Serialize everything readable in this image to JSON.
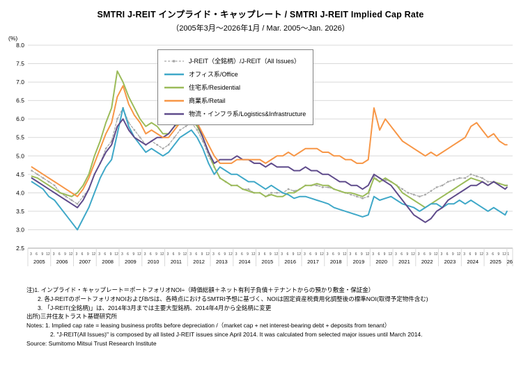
{
  "header": {
    "title": "SMTRI J-REIT インプライド・キャップレート / SMTRI J-REIT Implied Cap Rate",
    "subtitle": "（2005年3月～2026年1月 / Mar. 2005～Jan. 2026）"
  },
  "chart_data": {
    "type": "line",
    "title": "SMTRI J-REIT インプライド・キャップレート / SMTRI J-REIT Implied Cap Rate",
    "subtitle": "（2005年3月～2026年1月 / Mar. 2005～Jan. 2026）",
    "ylabel": "(%)",
    "ylim": [
      2.5,
      8.0
    ],
    "ytick_step": 0.5,
    "grid": true,
    "legend_position": "upper-center-in-plot",
    "x_years": [
      2005,
      2006,
      2007,
      2008,
      2009,
      2010,
      2011,
      2012,
      2013,
      2014,
      2015,
      2016,
      2017,
      2018,
      2019,
      2020,
      2021,
      2022,
      2023,
      2024,
      2025
    ],
    "x_end_label": "26",
    "month_ticks": [
      "3",
      "6",
      "9",
      "12"
    ],
    "x": [
      2005.17,
      2005.42,
      2005.67,
      2005.92,
      2006.17,
      2006.42,
      2006.67,
      2006.92,
      2007.17,
      2007.42,
      2007.67,
      2007.92,
      2008.17,
      2008.42,
      2008.67,
      2008.92,
      2009.17,
      2009.42,
      2009.67,
      2009.92,
      2010.17,
      2010.42,
      2010.67,
      2010.92,
      2011.17,
      2011.42,
      2011.67,
      2011.92,
      2012.17,
      2012.42,
      2012.67,
      2012.92,
      2013.17,
      2013.42,
      2013.67,
      2013.92,
      2014.17,
      2014.42,
      2014.67,
      2014.92,
      2015.17,
      2015.42,
      2015.67,
      2015.92,
      2016.17,
      2016.42,
      2016.67,
      2016.92,
      2017.17,
      2017.42,
      2017.67,
      2017.92,
      2018.17,
      2018.42,
      2018.67,
      2018.92,
      2019.17,
      2019.42,
      2019.67,
      2019.92,
      2020.17,
      2020.42,
      2020.67,
      2020.92,
      2021.17,
      2021.42,
      2021.67,
      2021.92,
      2022.17,
      2022.42,
      2022.67,
      2022.92,
      2023.17,
      2023.42,
      2023.67,
      2023.92,
      2024.17,
      2024.42,
      2024.67,
      2024.92,
      2025.17,
      2025.42,
      2025.67,
      2025.92,
      2026.0
    ],
    "series": [
      {
        "key": "all-issues",
        "label": "J-REIT（全銘柄）/J-REIT（All Issues）",
        "color": "#a6a6a6",
        "dashed": true,
        "markers": true,
        "values": [
          4.6,
          4.5,
          4.4,
          4.3,
          4.2,
          4.0,
          3.9,
          3.8,
          3.7,
          3.9,
          4.1,
          4.5,
          4.8,
          5.2,
          5.4,
          6.0,
          6.3,
          5.9,
          5.7,
          5.5,
          5.3,
          5.4,
          5.3,
          5.2,
          5.3,
          5.5,
          5.7,
          5.8,
          5.9,
          5.7,
          5.4,
          5.0,
          4.7,
          4.4,
          4.3,
          4.2,
          4.2,
          4.1,
          4.1,
          4.0,
          4.0,
          3.9,
          4.0,
          4.0,
          4.0,
          4.1,
          4.05,
          4.1,
          4.2,
          4.2,
          4.2,
          4.15,
          4.15,
          4.1,
          4.05,
          4.0,
          3.95,
          3.9,
          3.85,
          3.9,
          4.45,
          4.3,
          4.35,
          4.3,
          4.2,
          4.1,
          4.0,
          3.95,
          3.9,
          3.95,
          4.05,
          4.15,
          4.2,
          4.3,
          4.35,
          4.4,
          4.4,
          4.5,
          4.45,
          4.4,
          4.3,
          4.3,
          4.25,
          4.2,
          4.2
        ]
      },
      {
        "key": "office",
        "label": "オフィス系/Office",
        "color": "#3fa8c8",
        "dashed": false,
        "markers": false,
        "values": [
          4.3,
          4.2,
          4.1,
          3.9,
          3.8,
          3.6,
          3.4,
          3.2,
          3.0,
          3.3,
          3.6,
          4.0,
          4.4,
          4.7,
          4.9,
          5.6,
          6.3,
          5.8,
          5.5,
          5.3,
          5.1,
          5.2,
          5.1,
          5.0,
          5.1,
          5.3,
          5.5,
          5.6,
          5.7,
          5.5,
          5.2,
          4.8,
          4.5,
          4.7,
          4.6,
          4.5,
          4.5,
          4.4,
          4.3,
          4.3,
          4.2,
          4.1,
          4.2,
          4.1,
          4.0,
          3.95,
          3.85,
          3.9,
          3.9,
          3.85,
          3.8,
          3.75,
          3.7,
          3.6,
          3.55,
          3.5,
          3.45,
          3.4,
          3.35,
          3.4,
          3.9,
          3.8,
          3.85,
          3.9,
          3.8,
          3.7,
          3.65,
          3.6,
          3.5,
          3.6,
          3.7,
          3.7,
          3.6,
          3.7,
          3.7,
          3.8,
          3.7,
          3.8,
          3.7,
          3.6,
          3.5,
          3.6,
          3.5,
          3.4,
          3.5
        ]
      },
      {
        "key": "residential",
        "label": "住宅系/Residential",
        "color": "#9bbb59",
        "dashed": false,
        "markers": false,
        "values": [
          4.45,
          4.4,
          4.3,
          4.2,
          4.1,
          4.0,
          3.95,
          3.9,
          4.0,
          4.2,
          4.5,
          5.0,
          5.4,
          5.9,
          6.3,
          7.3,
          7.0,
          6.6,
          6.3,
          6.0,
          5.8,
          5.9,
          5.8,
          5.6,
          5.6,
          5.8,
          5.9,
          6.0,
          6.0,
          5.8,
          5.5,
          5.1,
          4.7,
          4.4,
          4.3,
          4.2,
          4.2,
          4.1,
          4.05,
          4.0,
          4.0,
          3.9,
          3.95,
          3.9,
          3.9,
          4.0,
          4.0,
          4.1,
          4.2,
          4.2,
          4.25,
          4.2,
          4.2,
          4.1,
          4.05,
          4.0,
          4.0,
          3.95,
          3.9,
          4.0,
          4.4,
          4.3,
          4.4,
          4.3,
          4.2,
          4.0,
          3.9,
          3.8,
          3.7,
          3.6,
          3.7,
          3.8,
          3.9,
          4.0,
          4.1,
          4.2,
          4.3,
          4.4,
          4.35,
          4.3,
          4.2,
          4.3,
          4.25,
          4.2,
          4.2
        ]
      },
      {
        "key": "retail",
        "label": "商業系/Retail",
        "color": "#f79646",
        "dashed": false,
        "markers": false,
        "values": [
          4.7,
          4.6,
          4.5,
          4.4,
          4.3,
          4.2,
          4.1,
          4.0,
          3.9,
          4.1,
          4.4,
          4.8,
          5.2,
          5.6,
          5.9,
          6.6,
          6.9,
          6.4,
          6.1,
          5.9,
          5.6,
          5.7,
          5.6,
          5.5,
          5.5,
          5.7,
          5.9,
          6.0,
          6.1,
          5.9,
          5.6,
          5.3,
          5.0,
          4.8,
          4.8,
          4.8,
          4.9,
          4.9,
          4.9,
          4.9,
          4.9,
          4.8,
          4.9,
          5.0,
          5.0,
          5.1,
          5.0,
          5.1,
          5.2,
          5.2,
          5.2,
          5.1,
          5.1,
          5.0,
          5.0,
          4.9,
          4.9,
          4.8,
          4.8,
          4.9,
          6.3,
          5.7,
          6.0,
          5.8,
          5.6,
          5.4,
          5.3,
          5.2,
          5.1,
          5.0,
          5.1,
          5.0,
          5.1,
          5.2,
          5.3,
          5.4,
          5.5,
          5.8,
          5.9,
          5.7,
          5.5,
          5.6,
          5.4,
          5.3,
          5.3
        ]
      },
      {
        "key": "logistics-infrastructure",
        "label": "物流・インフラ系/Logistics&Infrastructure",
        "color": "#5f4b8b",
        "dashed": false,
        "markers": false,
        "values": [
          4.4,
          4.3,
          4.2,
          4.1,
          4.0,
          3.9,
          3.8,
          3.7,
          3.6,
          3.8,
          4.1,
          4.5,
          4.8,
          5.1,
          5.3,
          5.8,
          6.0,
          5.7,
          5.5,
          5.4,
          5.3,
          5.4,
          5.5,
          5.5,
          5.6,
          5.8,
          6.1,
          6.3,
          6.2,
          5.9,
          5.5,
          5.1,
          4.8,
          4.9,
          4.9,
          4.9,
          5.0,
          4.9,
          4.9,
          4.8,
          4.8,
          4.7,
          4.8,
          4.7,
          4.7,
          4.7,
          4.6,
          4.6,
          4.7,
          4.6,
          4.6,
          4.5,
          4.5,
          4.4,
          4.3,
          4.3,
          4.2,
          4.2,
          4.1,
          4.2,
          4.5,
          4.4,
          4.3,
          4.2,
          4.0,
          3.8,
          3.6,
          3.4,
          3.3,
          3.2,
          3.3,
          3.5,
          3.6,
          3.8,
          3.9,
          4.0,
          4.1,
          4.2,
          4.2,
          4.3,
          4.2,
          4.3,
          4.2,
          4.1,
          4.15
        ]
      }
    ]
  },
  "notes": {
    "lines": [
      {
        "text": "注)1. インプライド・キャップレート＝ポートフォリオNOI÷（時価総額＋ネット有利子負債＋テナントからの預かり敷金・保証金）",
        "indent": 0
      },
      {
        "text": "2. 各J-REITのポートフォリオNOIおよびB/Sは、各時点におけるSMTRI予想に基づく、NOIは固定資産税費用化調整後の標準NOI(取得予定物件含む)",
        "indent": 1
      },
      {
        "text": "3. 「J-REIT(全銘柄)」は、2014年3月までは主要大型銘柄、2014年4月から全銘柄に変更",
        "indent": 1
      },
      {
        "text": "出所)三井住友トラスト基礎研究所",
        "indent": 0
      },
      {
        "text": "Notes: 1. Implied cap rate = leasing business profits before depreciation /（market cap + net interest-bearing debt + deposits  from  tenant）",
        "indent": 0
      },
      {
        "text": "2. \"J-REIT(All Issues)\" is composed by all listed J-REIT issues since April 2014.  It was calculated from selected major issues until March 2014.",
        "indent": 2
      },
      {
        "text": "Source: Sumitomo Mitsui Trust Research Institute",
        "indent": 0
      }
    ]
  }
}
